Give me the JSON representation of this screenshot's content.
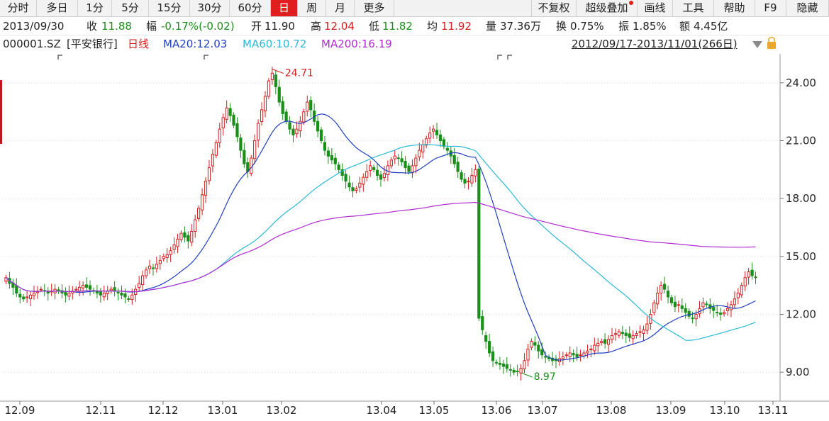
{
  "toolbar": {
    "left": [
      "分时",
      "多日",
      "1分",
      "5分",
      "15分",
      "30分",
      "60分",
      "日",
      "周",
      "月",
      "更多"
    ],
    "active_index": 7,
    "right": [
      "不复权",
      "超级叠加",
      "画线",
      "工具",
      "帮助",
      "F9",
      "隐藏"
    ]
  },
  "quote": {
    "date": "2013/09/30",
    "close_label": "收",
    "close_value": "11.88",
    "change_label": "幅",
    "change_value": "-0.17%(-0.02)",
    "open_label": "开",
    "open_value": "11.90",
    "high_label": "高",
    "high_value": "12.04",
    "low_label": "低",
    "low_value": "11.82",
    "avg_label": "均",
    "avg_value": "11.92",
    "volume_label": "量",
    "volume_value": "37.36万",
    "turnover_label": "换",
    "turnover_value": "0.75%",
    "amplitude_label": "振",
    "amplitude_value": "1.85%",
    "amount_label": "额",
    "amount_value": "4.45亿"
  },
  "indicator_row": {
    "symbol": "000001.SZ",
    "name": "[平安银行]",
    "period": "日线",
    "ma20": "MA20:12.03",
    "ma60": "MA60:10.72",
    "ma200": "MA200:16.19",
    "range": "2012/09/17-2013/11/01(266日)"
  },
  "colors": {
    "up": "#d21e1e",
    "down": "#1a8f1a",
    "ma20": "#1f3fbf",
    "ma60": "#2ab9d6",
    "ma200": "#b02bd1",
    "grid": "#d5d5d5"
  },
  "icons": [
    "lock-icon",
    "triangle-down-icon",
    "red-dot-icon"
  ],
  "chart_data": {
    "type": "candlestick",
    "ylim": [
      7.5,
      25.5
    ],
    "yticks": [
      "24.00",
      "21.00",
      "18.00",
      "15.00",
      "12.00",
      "9.00"
    ],
    "ytick_values": [
      24,
      21,
      18,
      15,
      12,
      9
    ],
    "xticks": [
      "12.09",
      "12.11",
      "12.12",
      "13.01",
      "13.02",
      "13.04",
      "13.05",
      "13.06",
      "13.07",
      "13.08",
      "13.09",
      "13.10",
      "13.11"
    ],
    "annotations": [
      {
        "text": "24.71",
        "value": 24.71,
        "kind": "high"
      },
      {
        "text": "8.97",
        "value": 8.97,
        "kind": "low"
      }
    ],
    "close_series": [
      13.9,
      13.6,
      13.4,
      13.1,
      12.9,
      12.8,
      12.9,
      13.0,
      13.1,
      13.2,
      13.3,
      13.2,
      13.1,
      13.2,
      13.3,
      13.2,
      13.1,
      13.0,
      13.1,
      13.2,
      13.3,
      13.4,
      13.5,
      13.4,
      13.3,
      13.2,
      13.1,
      13.0,
      13.1,
      13.2,
      13.3,
      13.2,
      13.1,
      13.0,
      12.9,
      12.8,
      13.0,
      13.3,
      13.6,
      14.0,
      14.3,
      14.5,
      14.4,
      14.6,
      14.8,
      15.0,
      15.1,
      15.3,
      15.6,
      15.9,
      16.2,
      16.0,
      15.8,
      16.3,
      16.9,
      17.5,
      18.2,
      18.9,
      19.6,
      20.3,
      20.9,
      21.6,
      22.2,
      22.7,
      22.3,
      21.8,
      21.2,
      20.5,
      19.8,
      19.4,
      20.1,
      21.0,
      21.9,
      22.6,
      23.3,
      24.1,
      24.5,
      23.8,
      23.0,
      22.4,
      22.0,
      21.6,
      21.3,
      21.6,
      22.0,
      22.5,
      23.0,
      22.6,
      22.0,
      21.5,
      21.0,
      20.5,
      20.2,
      20.0,
      19.8,
      19.5,
      19.2,
      18.9,
      18.6,
      18.4,
      18.5,
      18.8,
      19.1,
      19.4,
      19.7,
      19.5,
      19.2,
      19.0,
      19.3,
      19.7,
      20.0,
      20.2,
      20.1,
      19.9,
      19.6,
      19.4,
      19.7,
      20.1,
      20.5,
      20.8,
      21.1,
      21.4,
      21.6,
      21.3,
      21.0,
      20.7,
      20.5,
      20.2,
      19.8,
      19.4,
      19.0,
      18.8,
      18.9,
      19.2,
      19.5,
      11.8,
      11.2,
      10.6,
      10.0,
      9.6,
      9.5,
      9.4,
      9.3,
      9.2,
      9.1,
      9.0,
      9.05,
      9.2,
      9.6,
      10.2,
      10.6,
      10.4,
      10.1,
      9.9,
      9.8,
      9.7,
      9.6,
      9.6,
      9.7,
      9.8,
      9.9,
      10.0,
      9.9,
      9.8,
      9.9,
      10.0,
      10.1,
      10.2,
      10.4,
      10.5,
      10.6,
      10.5,
      10.7,
      10.9,
      11.0,
      11.1,
      11.0,
      10.9,
      10.8,
      10.9,
      11.0,
      11.1,
      11.2,
      11.5,
      12.0,
      12.6,
      13.1,
      13.5,
      13.3,
      12.9,
      12.6,
      12.4,
      12.5,
      12.3,
      12.1,
      11.9,
      11.8,
      12.0,
      12.3,
      12.6,
      12.5,
      12.3,
      12.2,
      12.1,
      12.0,
      12.1,
      12.3,
      12.5,
      12.8,
      13.1,
      13.5,
      13.9,
      14.2,
      14.0,
      13.9
    ]
  }
}
